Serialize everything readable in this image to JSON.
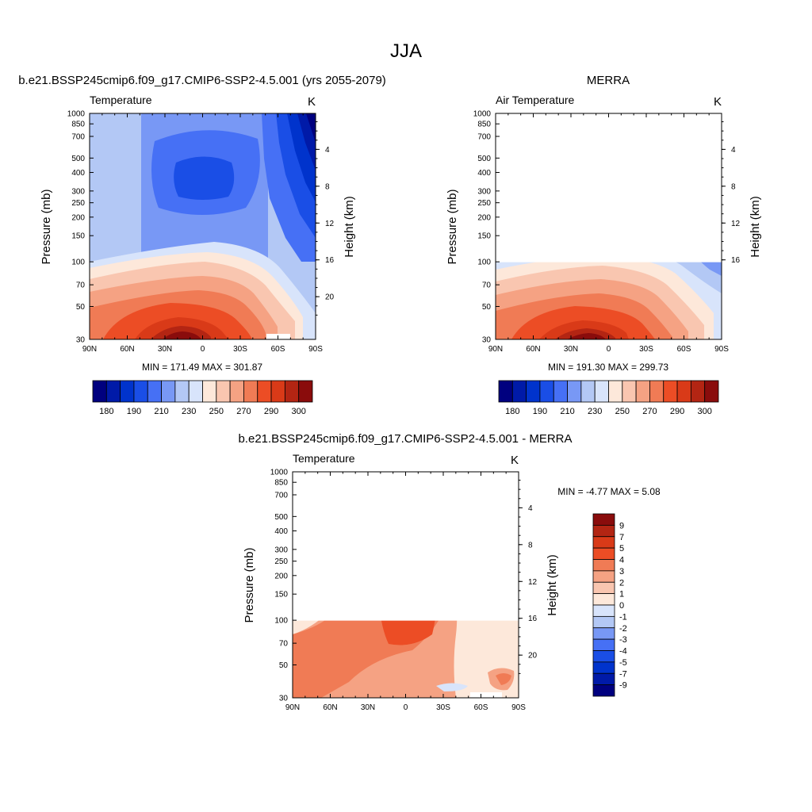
{
  "figure_title": "JJA",
  "chart_data": [
    {
      "type": "heatmap",
      "panel_title": "b.e21.BSSP245cmip6.f09_g17.CMIP6-SSP2-4.5.001 (yrs 2055-2079)",
      "variable_label": "Temperature",
      "units": "K",
      "ylabel": "Pressure (mb)",
      "y2label": "Height (km)",
      "x_ticks": [
        "90N",
        "60N",
        "30N",
        "0",
        "30S",
        "60S",
        "90S"
      ],
      "y_ticks": [
        "30",
        "50",
        "70",
        "100",
        "150",
        "200",
        "250",
        "300",
        "400",
        "500",
        "700",
        "850",
        "1000"
      ],
      "y2_ticks": [
        "4",
        "8",
        "12",
        "16",
        "20"
      ],
      "ylim": [
        1000,
        30
      ],
      "x_range": [
        90,
        -90
      ],
      "data_top_mb": 30,
      "min_max_text": "MIN = 171.49  MAX = 301.87",
      "min": 171.49,
      "max": 301.87,
      "colorbar_labels": [
        "180",
        "190",
        "210",
        "230",
        "250",
        "270",
        "290",
        "300"
      ],
      "colorbar_levels": [
        180,
        185,
        190,
        200,
        210,
        220,
        230,
        240,
        250,
        260,
        270,
        280,
        290,
        295,
        300
      ]
    },
    {
      "type": "heatmap",
      "panel_title": "MERRA",
      "variable_label": "Air Temperature",
      "units": "K",
      "ylabel": "Pressure (mb)",
      "y2label": "Height (km)",
      "x_ticks": [
        "90N",
        "60N",
        "30N",
        "0",
        "30S",
        "60S",
        "90S"
      ],
      "y_ticks": [
        "30",
        "50",
        "70",
        "100",
        "150",
        "200",
        "250",
        "300",
        "400",
        "500",
        "700",
        "850",
        "1000"
      ],
      "y2_ticks": [
        "4",
        "8",
        "12",
        "16"
      ],
      "ylim": [
        1000,
        30
      ],
      "x_range": [
        90,
        -90
      ],
      "data_top_mb": 100,
      "min_max_text": "MIN = 191.30  MAX = 299.73",
      "min": 191.3,
      "max": 299.73,
      "colorbar_labels": [
        "180",
        "190",
        "210",
        "230",
        "250",
        "270",
        "290",
        "300"
      ],
      "colorbar_levels": [
        180,
        185,
        190,
        200,
        210,
        220,
        230,
        240,
        250,
        260,
        270,
        280,
        290,
        295,
        300
      ]
    },
    {
      "type": "heatmap",
      "panel_title": "b.e21.BSSP245cmip6.f09_g17.CMIP6-SSP2-4.5.001 - MERRA",
      "variable_label": "Temperature",
      "units": "K",
      "ylabel": "Pressure (mb)",
      "y2label": "Height (km)",
      "x_ticks": [
        "90N",
        "60N",
        "30N",
        "0",
        "30S",
        "60S",
        "90S"
      ],
      "y_ticks": [
        "30",
        "50",
        "70",
        "100",
        "150",
        "200",
        "250",
        "300",
        "400",
        "500",
        "700",
        "850",
        "1000"
      ],
      "y2_ticks": [
        "4",
        "8",
        "12",
        "16",
        "20"
      ],
      "ylim": [
        1000,
        30
      ],
      "x_range": [
        90,
        -90
      ],
      "data_top_mb": 100,
      "min_max_text": "MIN =  -4.77  MAX =   5.08",
      "min": -4.77,
      "max": 5.08,
      "colorbar_labels": [
        "9",
        "7",
        "5",
        "4",
        "3",
        "2",
        "1",
        "0",
        "-1",
        "-2",
        "-3",
        "-4",
        "-5",
        "-7",
        "-9"
      ],
      "colorbar_levels": [
        9,
        7,
        5,
        4,
        3,
        2,
        1,
        0,
        -1,
        -2,
        -3,
        -4,
        -5,
        -7,
        -9
      ]
    }
  ],
  "colors": {
    "palette": [
      "#00007f",
      "#001aa8",
      "#0033cc",
      "#1a4ee6",
      "#4670f5",
      "#7898f5",
      "#b3c8f5",
      "#d8e4fb",
      "#fde8da",
      "#f9c6b0",
      "#f5a283",
      "#f07b55",
      "#ec4d25",
      "#d93a18",
      "#b32513",
      "#8a0c0c"
    ]
  }
}
